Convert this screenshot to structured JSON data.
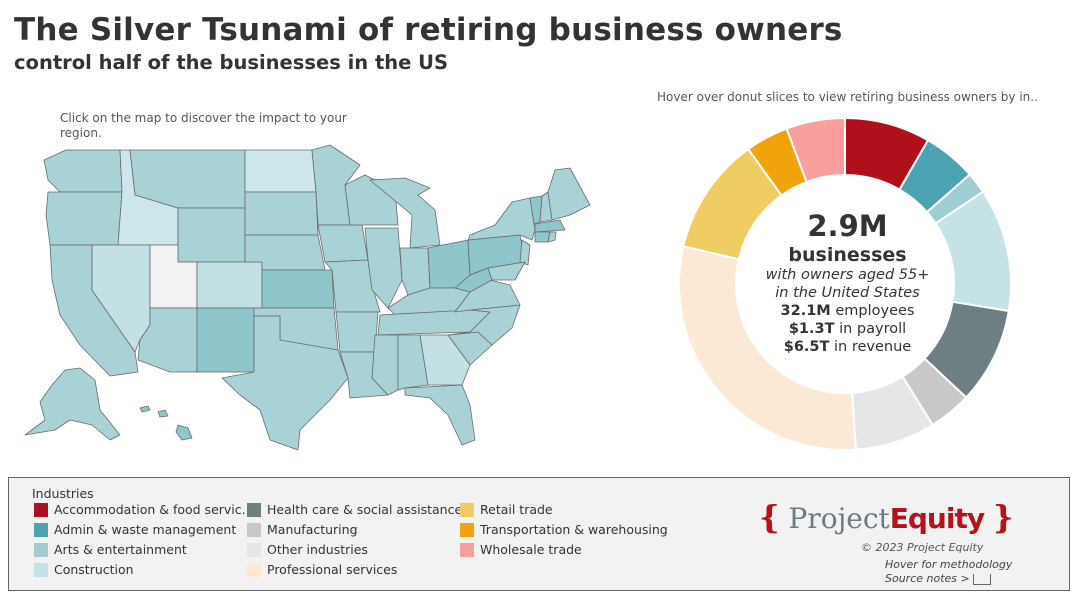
{
  "header": {
    "title": "The Silver Tsunami of retiring business owners",
    "subtitle": "control half of the businesses in the US"
  },
  "map": {
    "hint": "Click on the map to discover the impact to your region."
  },
  "donut": {
    "hint": "Hover over donut slices to view retiring business owners by in..",
    "center": {
      "businesses_value": "2.9M",
      "businesses_label": "businesses",
      "owners_line": "with owners aged 55+",
      "region_line": "in the United States",
      "employees_value": "32.1M",
      "employees_label": "employees",
      "payroll_value": "$1.3T",
      "payroll_label": "in payroll",
      "revenue_value": "$6.5T",
      "revenue_label": "in revenue"
    }
  },
  "chart_data": {
    "type": "pie",
    "donut": true,
    "categories": [
      "Accommodation & food servic..",
      "Admin & waste management",
      "Arts & entertainment",
      "Construction",
      "Health care & social assistance",
      "Manufacturing",
      "Other industries",
      "Professional services",
      "Retail trade",
      "Transportation & warehousing",
      "Wholesale trade"
    ],
    "slice_order": [
      0,
      1,
      2,
      3,
      4,
      5,
      6,
      7,
      8,
      9,
      10
    ],
    "values": [
      8.0,
      5.0,
      2.0,
      11.5,
      9.0,
      4.0,
      7.5,
      28.5,
      11.0,
      4.0,
      5.5
    ],
    "colors": [
      "#b0101c",
      "#4ba3b2",
      "#9ecdd3",
      "#c5e2e7",
      "#6d7f83",
      "#c8c8c8",
      "#e6e6e6",
      "#fbe8d5",
      "#f0cd62",
      "#f2a20a",
      "#f99f9d"
    ],
    "legend_title": "Industries"
  },
  "legend": {
    "title": "Industries",
    "items": [
      {
        "label": "Accommodation & food servic..",
        "color": "#b0101c"
      },
      {
        "label": "Admin & waste management",
        "color": "#4ba3b2"
      },
      {
        "label": "Arts & entertainment",
        "color": "#9ecdd3"
      },
      {
        "label": "Construction",
        "color": "#c5e2e7"
      },
      {
        "label": "Health care & social assistance",
        "color": "#6d7f83"
      },
      {
        "label": "Manufacturing",
        "color": "#c8c8c8"
      },
      {
        "label": "Other industries",
        "color": "#e6e6e6"
      },
      {
        "label": "Professional services",
        "color": "#fbe8d5"
      },
      {
        "label": "Retail trade",
        "color": "#f0cd62"
      },
      {
        "label": "Transportation & warehousing",
        "color": "#f2a20a"
      },
      {
        "label": "Wholesale trade",
        "color": "#f99f9d"
      }
    ]
  },
  "footer": {
    "logo_part1": "Project",
    "logo_part2": "Equity",
    "copyright": "© 2023 Project Equity",
    "methodology": "Hover for methodology",
    "source_notes": "Source notes >"
  },
  "colors": {
    "map_base": "#a8d2d6",
    "map_light": "#cde6ea",
    "map_mid": "#8fc6cc",
    "map_white": "#f2f2f2",
    "map_stroke": "#6a6a6a",
    "brand_red": "#b5121b"
  }
}
